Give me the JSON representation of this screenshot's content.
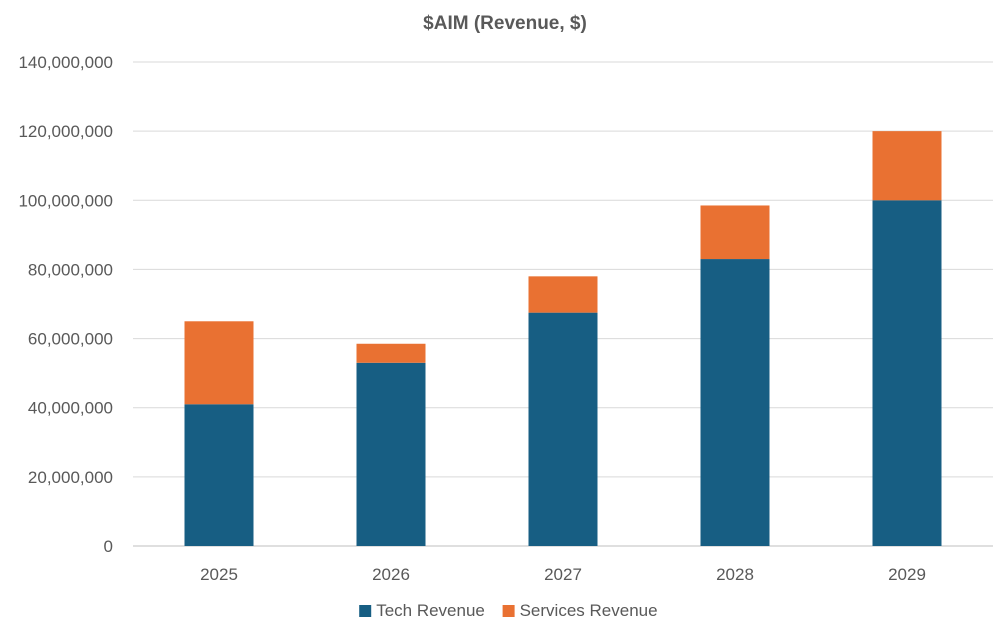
{
  "chart_data": {
    "type": "bar",
    "stacked": true,
    "title": "$AIM (Revenue, $)",
    "xlabel": "",
    "ylabel": "",
    "categories": [
      "2025",
      "2026",
      "2027",
      "2028",
      "2029"
    ],
    "series": [
      {
        "name": "Tech Revenue",
        "color": "#175E83",
        "values": [
          41000000,
          53000000,
          67500000,
          83000000,
          100000000
        ]
      },
      {
        "name": "Services Revenue",
        "color": "#E97132",
        "values": [
          24000000,
          5500000,
          10500000,
          15500000,
          20000000
        ]
      }
    ],
    "ylim": [
      0,
      140000000
    ],
    "yticks": [
      "0",
      "20,000,000",
      "40,000,000",
      "60,000,000",
      "80,000,000",
      "100,000,000",
      "120,000,000",
      "140,000,000"
    ],
    "grid": true,
    "legend_position": "bottom"
  }
}
